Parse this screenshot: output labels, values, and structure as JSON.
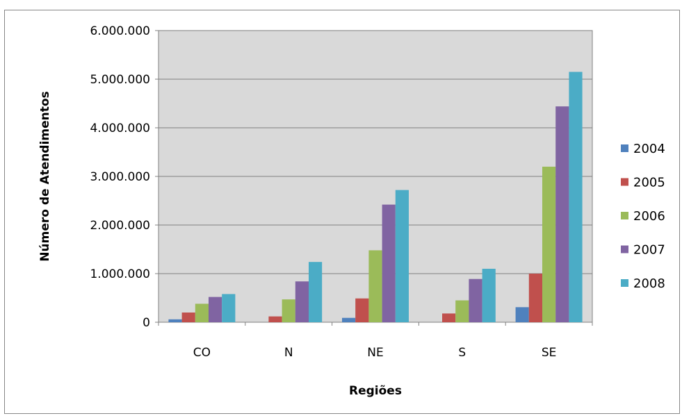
{
  "chart_data": {
    "type": "bar",
    "title": "",
    "xlabel": "Regiões",
    "ylabel": "Número de Atendimentos",
    "categories": [
      "CO",
      "N",
      "NE",
      "S",
      "SE"
    ],
    "ylim": [
      0,
      6000000
    ],
    "yticks": [
      0,
      1000000,
      2000000,
      3000000,
      4000000,
      5000000,
      6000000
    ],
    "ytick_labels": [
      "0",
      "1.000.000",
      "2.000.000",
      "3.000.000",
      "4.000.000",
      "5.000.000",
      "6.000.000"
    ],
    "grid": true,
    "legend_position": "right",
    "series": [
      {
        "name": "2004",
        "color": "#4f81bd",
        "values": [
          60000,
          0,
          90000,
          0,
          310000
        ]
      },
      {
        "name": "2005",
        "color": "#c0504d",
        "values": [
          200000,
          120000,
          490000,
          180000,
          1000000
        ]
      },
      {
        "name": "2006",
        "color": "#9bbb59",
        "values": [
          380000,
          470000,
          1480000,
          450000,
          3200000
        ]
      },
      {
        "name": "2007",
        "color": "#8064a2",
        "values": [
          520000,
          840000,
          2420000,
          890000,
          4440000
        ]
      },
      {
        "name": "2008",
        "color": "#4bacc6",
        "values": [
          580000,
          1240000,
          2720000,
          1100000,
          5150000
        ]
      }
    ]
  }
}
